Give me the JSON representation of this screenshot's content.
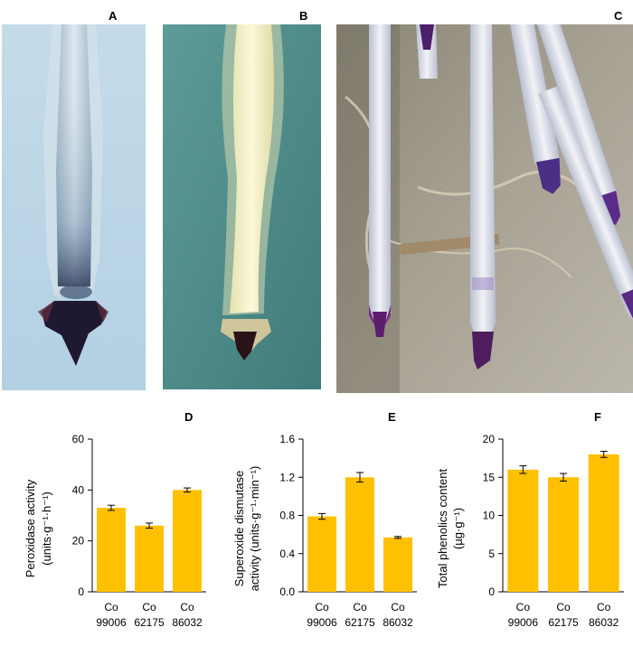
{
  "figure": {
    "panels": {
      "A": "A",
      "B": "B",
      "C": "C",
      "D": "D",
      "E": "E",
      "F": "F"
    }
  },
  "colors": {
    "bar": "#ffc000",
    "axis": "#000000"
  },
  "chart_data": [
    {
      "panel": "D",
      "type": "bar",
      "categories": [
        [
          "Co",
          "99006"
        ],
        [
          "Co",
          "62175"
        ],
        [
          "Co",
          "86032"
        ]
      ],
      "values": [
        33,
        26,
        40
      ],
      "errors": [
        1,
        1,
        0.8
      ],
      "ylabel_lines": [
        "Peroxidase activity",
        "(units·g⁻¹·h⁻¹)"
      ],
      "ylim": [
        0,
        60
      ],
      "yticks": [
        0,
        20,
        40,
        60
      ],
      "ytick_labels": [
        "0",
        "20",
        "40",
        "60"
      ]
    },
    {
      "panel": "E",
      "type": "bar",
      "categories": [
        [
          "Co",
          "99006"
        ],
        [
          "Co",
          "62175"
        ],
        [
          "Co",
          "86032"
        ]
      ],
      "values": [
        0.79,
        1.2,
        0.57
      ],
      "errors": [
        0.03,
        0.05,
        0.01
      ],
      "ylabel_lines": [
        "Superoxide dismutase",
        "activity (units·g⁻¹·min⁻¹)"
      ],
      "ylim": [
        0,
        1.6
      ],
      "yticks": [
        0,
        0.4,
        0.8,
        1.2,
        1.6
      ],
      "ytick_labels": [
        "0.0",
        "0.4",
        "0.8",
        "1.2",
        "1.6"
      ]
    },
    {
      "panel": "F",
      "type": "bar",
      "categories": [
        [
          "Co",
          "99006"
        ],
        [
          "Co",
          "62175"
        ],
        [
          "Co",
          "86032"
        ]
      ],
      "values": [
        16,
        15,
        18
      ],
      "errors": [
        0.5,
        0.5,
        0.4
      ],
      "ylabel_lines": [
        "Total phenolics content",
        "(µg·g⁻¹)"
      ],
      "ylim": [
        0,
        20
      ],
      "yticks": [
        0,
        5,
        10,
        15,
        20
      ],
      "ytick_labels": [
        "0",
        "5",
        "10",
        "15",
        "20"
      ]
    }
  ]
}
